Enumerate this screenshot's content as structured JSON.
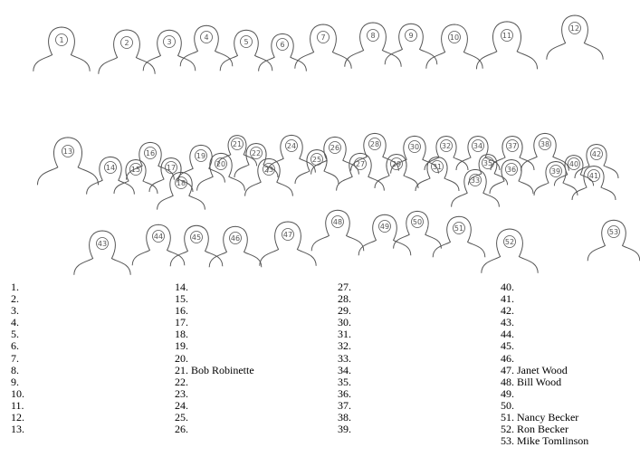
{
  "figure_labels": [
    "1",
    "2",
    "3",
    "4",
    "5",
    "6",
    "7",
    "8",
    "9",
    "10",
    "11",
    "12",
    "13",
    "14",
    "15",
    "16",
    "17",
    "18",
    "19",
    "20",
    "21",
    "22",
    "23",
    "24",
    "25",
    "26",
    "27",
    "28",
    "29",
    "30",
    "31",
    "32",
    "33",
    "34",
    "35",
    "36",
    "37",
    "38",
    "39",
    "40",
    "41",
    "42",
    "43",
    "44",
    "45",
    "46",
    "47",
    "48",
    "49",
    "50",
    "51",
    "52",
    "53"
  ],
  "key_columns": [
    [
      "1.",
      "2.",
      "3.",
      "4.",
      "5.",
      "6.",
      "7.",
      "8.",
      "9.",
      "10.",
      "11.",
      "12.",
      "13."
    ],
    [
      "14.",
      "15.",
      "16.",
      "17.",
      "18.",
      "19.",
      "20.",
      "21. Bob Robinette",
      "22.",
      "23.",
      "24.",
      "25.",
      "26."
    ],
    [
      "27.",
      "28.",
      "29.",
      "30.",
      "31.",
      "32.",
      "33.",
      "34.",
      "35.",
      "36.",
      "37.",
      "38.",
      "39."
    ],
    [
      "40.",
      "41.",
      "42.",
      "43.",
      "44.",
      "45.",
      "46.",
      "47. Janet Wood",
      "48. Bill Wood",
      "49.",
      "50.",
      "51. Nancy Becker",
      "52. Ron Becker",
      "53. Mike Tomlinson"
    ]
  ],
  "colors": {
    "pencil": "#555555",
    "text": "#000000"
  }
}
